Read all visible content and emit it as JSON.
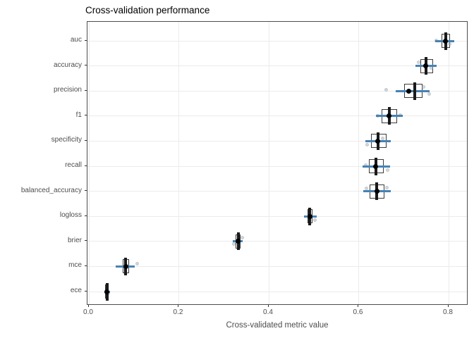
{
  "chart_data": {
    "type": "boxplot",
    "orientation": "horizontal",
    "title": "Cross-validation performance",
    "xlabel": "Cross-validated metric value",
    "ylabel": "",
    "xlim": [
      -0.003,
      0.845
    ],
    "x_ticks": [
      0.0,
      0.2,
      0.4,
      0.6,
      0.8
    ],
    "x_tick_labels": [
      "0.0",
      "0.2",
      "0.4",
      "0.6",
      "0.8"
    ],
    "grid": true,
    "categories_top_to_bottom": [
      "auc",
      "accuracy",
      "precision",
      "f1",
      "specificity",
      "recall",
      "balanced_accuracy",
      "logloss",
      "brier",
      "mce",
      "ece"
    ],
    "metrics": [
      {
        "label": "auc",
        "q1": 0.784,
        "median": 0.794,
        "q3": 0.803,
        "mean": 0.793,
        "interval": [
          0.77,
          0.813
        ],
        "folds": [
          {
            "value": 0.772,
            "dy": -1
          },
          {
            "value": 0.802,
            "dy": 4
          }
        ]
      },
      {
        "label": "accuracy",
        "q1": 0.737,
        "median": 0.75,
        "q3": 0.765,
        "mean": 0.749,
        "interval": [
          0.726,
          0.773
        ],
        "folds": [
          {
            "value": 0.733,
            "dy": -5
          },
          {
            "value": 0.762,
            "dy": 3
          }
        ]
      },
      {
        "label": "precision",
        "q1": 0.701,
        "median": 0.725,
        "q3": 0.742,
        "mean": 0.711,
        "interval": [
          0.682,
          0.758
        ],
        "folds": [
          {
            "value": 0.661,
            "dy": -2
          },
          {
            "value": 0.744,
            "dy": -6
          },
          {
            "value": 0.757,
            "dy": 4
          }
        ]
      },
      {
        "label": "f1",
        "q1": 0.651,
        "median": 0.668,
        "q3": 0.686,
        "mean": 0.668,
        "interval": [
          0.638,
          0.698
        ],
        "folds": [
          {
            "value": 0.642,
            "dy": 0
          },
          {
            "value": 0.692,
            "dy": -1
          }
        ]
      },
      {
        "label": "specificity",
        "q1": 0.627,
        "median": 0.643,
        "q3": 0.662,
        "mean": 0.642,
        "interval": [
          0.615,
          0.671
        ],
        "folds": [
          {
            "value": 0.619,
            "dy": 5
          },
          {
            "value": 0.653,
            "dy": -4
          }
        ]
      },
      {
        "label": "recall",
        "q1": 0.623,
        "median": 0.638,
        "q3": 0.656,
        "mean": 0.638,
        "interval": [
          0.609,
          0.67
        ],
        "folds": [
          {
            "value": 0.615,
            "dy": -2
          },
          {
            "value": 0.664,
            "dy": 5
          }
        ]
      },
      {
        "label": "balanced_accuracy",
        "q1": 0.624,
        "median": 0.64,
        "q3": 0.657,
        "mean": 0.64,
        "interval": [
          0.61,
          0.671
        ],
        "folds": [
          {
            "value": 0.617,
            "dy": -4
          },
          {
            "value": 0.663,
            "dy": -5
          }
        ]
      },
      {
        "label": "logloss",
        "q1": 0.486,
        "median": 0.491,
        "q3": 0.497,
        "mean": 0.491,
        "interval": [
          0.479,
          0.507
        ],
        "folds": [
          {
            "value": 0.502,
            "dy": 5
          }
        ]
      },
      {
        "label": "brier",
        "q1": 0.326,
        "median": 0.332,
        "q3": 0.337,
        "mean": 0.332,
        "interval": [
          0.32,
          0.342
        ],
        "folds": [
          {
            "value": 0.322,
            "dy": 4
          },
          {
            "value": 0.341,
            "dy": -5
          }
        ]
      },
      {
        "label": "mce",
        "q1": 0.075,
        "median": 0.082,
        "q3": 0.089,
        "mean": 0.082,
        "interval": [
          0.06,
          0.102
        ],
        "folds": [
          {
            "value": 0.077,
            "dy": 6
          },
          {
            "value": 0.107,
            "dy": -4
          }
        ]
      },
      {
        "label": "ece",
        "q1": 0.036,
        "median": 0.04,
        "q3": 0.044,
        "mean": 0.04,
        "interval": [
          0.034,
          0.047
        ],
        "folds": [
          {
            "value": 0.043,
            "dy": 2
          }
        ]
      }
    ],
    "colors": {
      "box_border": "#3a3a3a",
      "box_fill": "#ffffff",
      "median_bar": "#1a1a1a",
      "mean_point": "#000000",
      "interval_line": "#4682b4",
      "fold_point_fill": "#aeb9c2",
      "fold_point_border": "#8d9aa5",
      "grid": "#ebebeb",
      "panel_border": "#4d4d4d",
      "axis_text": "#4d4d4d",
      "tick_mark": "#333333",
      "title_text": "#000000"
    },
    "legend": "none"
  }
}
